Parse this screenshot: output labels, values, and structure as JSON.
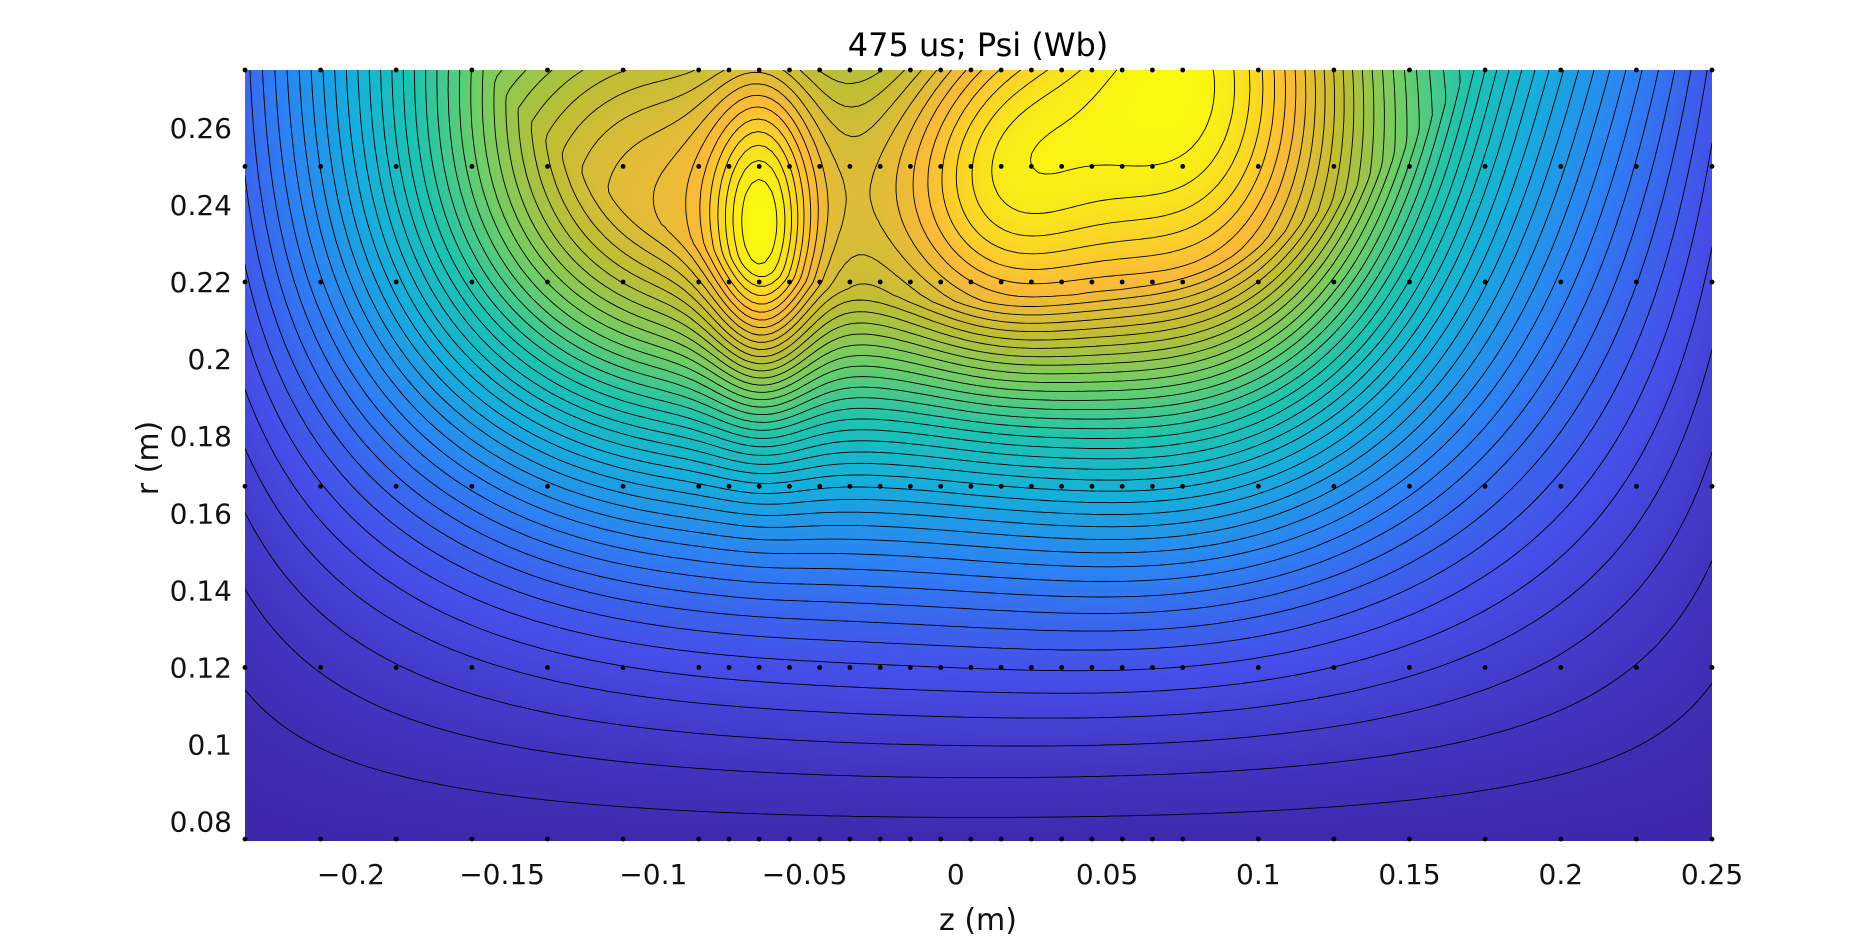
{
  "chart_data": {
    "type": "heatmap",
    "title": "475 us; Psi (Wb)",
    "xlabel": "z (m)",
    "ylabel": "r (m)",
    "xlim": [
      -0.235,
      0.25
    ],
    "ylim": [
      0.075,
      0.275
    ],
    "x_ticks": [
      -0.2,
      -0.15,
      -0.1,
      -0.05,
      0,
      0.05,
      0.1,
      0.15,
      0.2,
      0.25
    ],
    "x_tick_labels": [
      "−0.2",
      "−0.15",
      "−0.1",
      "−0.05",
      "0",
      "0.05",
      "0.1",
      "0.15",
      "0.2",
      "0.25"
    ],
    "y_ticks": [
      0.08,
      0.1,
      0.12,
      0.14,
      0.16,
      0.18,
      0.2,
      0.22,
      0.24,
      0.26
    ],
    "y_tick_labels": [
      "0.08",
      "0.1",
      "0.12",
      "0.14",
      "0.16",
      "0.18",
      "0.2",
      "0.22",
      "0.24",
      "0.26"
    ],
    "colormap": "parula",
    "contour_levels": 46,
    "psi_relative_peaks": [
      {
        "z": -0.095,
        "r": 0.222,
        "amplitude": 0.58,
        "z_width": 0.07,
        "r_width": 0.055
      },
      {
        "z": -0.064,
        "r": 0.225,
        "amplitude": 0.28,
        "z_width": 0.012,
        "r_width": 0.03
      },
      {
        "z": 0.078,
        "r": 0.275,
        "amplitude": 0.42,
        "z_width": 0.045,
        "r_width": 0.06
      },
      {
        "z": 0.072,
        "r": 0.205,
        "amplitude": 0.38,
        "z_width": 0.065,
        "r_width": 0.06
      },
      {
        "z": 0.012,
        "r": 0.24,
        "amplitude": 0.22,
        "z_width": 0.025,
        "r_width": 0.035
      }
    ],
    "probe_rows": [
      {
        "r": 0.275,
        "z": [
          -0.235,
          -0.21,
          -0.185,
          -0.16,
          -0.135,
          -0.11,
          -0.085,
          -0.075,
          -0.065,
          -0.055,
          -0.045,
          -0.035,
          -0.025,
          -0.015,
          -0.005,
          0.005,
          0.015,
          0.025,
          0.035,
          0.045,
          0.055,
          0.065,
          0.075,
          0.1,
          0.125,
          0.15,
          0.175,
          0.2,
          0.225,
          0.25
        ]
      },
      {
        "r": 0.25,
        "z": [
          -0.235,
          -0.21,
          -0.185,
          -0.16,
          -0.135,
          -0.11,
          -0.085,
          -0.075,
          -0.065,
          -0.055,
          -0.045,
          -0.035,
          -0.025,
          -0.015,
          -0.005,
          0.005,
          0.015,
          0.025,
          0.035,
          0.045,
          0.055,
          0.065,
          0.075,
          0.1,
          0.125,
          0.15,
          0.175,
          0.2,
          0.225,
          0.25
        ]
      },
      {
        "r": 0.22,
        "z": [
          -0.235,
          -0.21,
          -0.185,
          -0.16,
          -0.135,
          -0.11,
          -0.085,
          -0.075,
          -0.065,
          -0.055,
          -0.045,
          -0.035,
          -0.025,
          -0.015,
          -0.005,
          0.005,
          0.015,
          0.025,
          0.035,
          0.045,
          0.055,
          0.065,
          0.075,
          0.1,
          0.125,
          0.15,
          0.175,
          0.2,
          0.225,
          0.25
        ]
      },
      {
        "r": 0.167,
        "z": [
          -0.235,
          -0.21,
          -0.185,
          -0.16,
          -0.135,
          -0.11,
          -0.085,
          -0.075,
          -0.065,
          -0.055,
          -0.045,
          -0.035,
          -0.025,
          -0.015,
          -0.005,
          0.005,
          0.015,
          0.025,
          0.035,
          0.045,
          0.055,
          0.065,
          0.075,
          0.1,
          0.125,
          0.15,
          0.175,
          0.2,
          0.225,
          0.25
        ]
      },
      {
        "r": 0.12,
        "z": [
          -0.235,
          -0.21,
          -0.185,
          -0.16,
          -0.135,
          -0.11,
          -0.085,
          -0.075,
          -0.065,
          -0.055,
          -0.045,
          -0.035,
          -0.025,
          -0.015,
          -0.005,
          0.005,
          0.015,
          0.025,
          0.035,
          0.045,
          0.055,
          0.065,
          0.075,
          0.1,
          0.125,
          0.15,
          0.175,
          0.2,
          0.225,
          0.25
        ]
      },
      {
        "r": 0.0755,
        "z": [
          -0.235,
          -0.21,
          -0.185,
          -0.16,
          -0.135,
          -0.11,
          -0.085,
          -0.075,
          -0.065,
          -0.055,
          -0.045,
          -0.035,
          -0.025,
          -0.015,
          -0.005,
          0.005,
          0.015,
          0.025,
          0.035,
          0.045,
          0.055,
          0.065,
          0.075,
          0.1,
          0.125,
          0.15,
          0.175,
          0.2,
          0.225,
          0.25
        ]
      }
    ]
  }
}
